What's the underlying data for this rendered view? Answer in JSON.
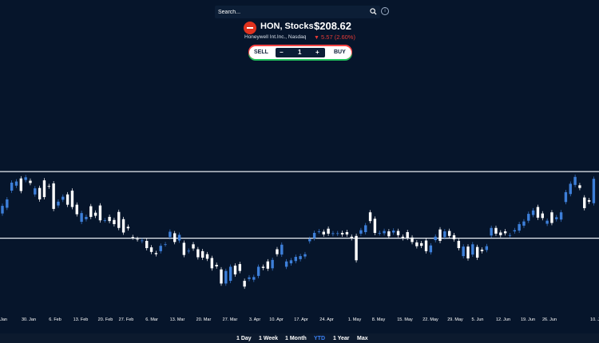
{
  "search": {
    "placeholder": "Search..."
  },
  "header": {
    "symbol": "HON, Stocks",
    "company": "Honeywell Int.Inc., Nasdaq",
    "price": "$208.62",
    "change": "5.57 (2.60%)",
    "change_arrow": "▼",
    "down_color": "#e53935"
  },
  "trade": {
    "sell_label": "SELL",
    "minus_label": "−",
    "quantity": "1",
    "plus_label": "+",
    "buy_label": "BUY"
  },
  "time_ranges": [
    "1 Day",
    "1 Week",
    "1 Month",
    "YTD",
    "1 Year",
    "Max"
  ],
  "selected_range": "YTD",
  "colors": {
    "up": "#3d7fd9",
    "down": "#ffffff",
    "accent": "#3b82f6",
    "background": "#06152b"
  },
  "chart_data": {
    "type": "candlestick",
    "x_labels": [
      ". Jan",
      "30. Jan",
      "6. Feb",
      "13. Feb",
      "20. Feb",
      "27. Feb",
      "6. Mar",
      "13. Mar",
      "20. Mar",
      "27. Mar",
      "3. Apr",
      "10. Apr",
      "17. Apr",
      "24. Apr",
      "1. May",
      "8. May",
      "15. May",
      "22. May",
      "29. May",
      "5. Jun",
      "12. Jun",
      "19. Jun",
      "26. Jun",
      "10. J"
    ],
    "horizontal_lines": [
      226.5,
      209.0
    ],
    "ylim": [
      193,
      237
    ],
    "candles": [
      {
        "o": 215.5,
        "c": 217.5
      },
      {
        "o": 217.0,
        "c": 219.2
      },
      {
        "o": 221.5,
        "c": 223.6
      },
      {
        "o": 222.8,
        "c": 223.9
      },
      {
        "o": 224.7,
        "c": 221.4
      },
      {
        "o": 224.3,
        "c": 225.0
      },
      {
        "o": 224.1,
        "c": 223.5
      },
      {
        "o": 220.5,
        "c": 222.1
      },
      {
        "o": 222.2,
        "c": 219.2
      },
      {
        "o": 224.2,
        "c": 219.8
      },
      {
        "o": 222.7,
        "c": 222.6
      },
      {
        "o": 223.4,
        "c": 216.7
      },
      {
        "o": 217.6,
        "c": 218.6
      },
      {
        "o": 219.1,
        "c": 219.9
      },
      {
        "o": 220.5,
        "c": 217.8
      },
      {
        "o": 221.5,
        "c": 217.2
      },
      {
        "o": 217.8,
        "c": 215.3
      },
      {
        "o": 213.3,
        "c": 215.6
      },
      {
        "o": 214.0,
        "c": 214.6
      },
      {
        "o": 217.4,
        "c": 214.6
      },
      {
        "o": 215.7,
        "c": 214.9
      },
      {
        "o": 217.6,
        "c": 213.7
      },
      {
        "o": 213.7,
        "c": 213.7
      },
      {
        "o": 214.6,
        "c": 213.5
      },
      {
        "o": 213.8,
        "c": 212.7
      },
      {
        "o": 215.9,
        "c": 211.7
      },
      {
        "o": 214.0,
        "c": 210.5
      },
      {
        "o": 212.0,
        "c": 211.6
      },
      {
        "o": 209.3,
        "c": 209.2
      },
      {
        "o": 208.8,
        "c": 208.7
      },
      {
        "o": 208.3,
        "c": 208.4
      },
      {
        "o": 208.3,
        "c": 206.4
      },
      {
        "o": 206.6,
        "c": 205.4
      },
      {
        "o": 205.1,
        "c": 204.8
      },
      {
        "o": 205.6,
        "c": 207.0
      },
      {
        "o": 207.4,
        "c": 207.4
      },
      {
        "o": 209.3,
        "c": 210.7
      },
      {
        "o": 210.3,
        "c": 208.0
      },
      {
        "o": 208.4,
        "c": 209.9
      },
      {
        "o": 207.8,
        "c": 204.6
      },
      {
        "o": 205.6,
        "c": 205.7
      },
      {
        "o": 207.4,
        "c": 206.3
      },
      {
        "o": 206.1,
        "c": 204.0
      },
      {
        "o": 205.6,
        "c": 203.9
      },
      {
        "o": 204.8,
        "c": 203.6
      },
      {
        "o": 203.8,
        "c": 201.1
      },
      {
        "o": 202.0,
        "c": 201.6
      },
      {
        "o": 200.8,
        "c": 197.1
      },
      {
        "o": 197.1,
        "c": 200.4
      },
      {
        "o": 197.8,
        "c": 201.5
      },
      {
        "o": 201.8,
        "c": 199.5
      },
      {
        "o": 202.2,
        "c": 200.4
      },
      {
        "o": 197.8,
        "c": 196.3
      },
      {
        "o": 198.3,
        "c": 198.7
      },
      {
        "o": 198.1,
        "c": 198.8
      },
      {
        "o": 199.1,
        "c": 201.5
      },
      {
        "o": 201.5,
        "c": 201.2
      },
      {
        "o": 202.9,
        "c": 201.0
      },
      {
        "o": 201.1,
        "c": 203.3
      },
      {
        "o": 206.1,
        "c": 204.8
      },
      {
        "o": 204.7,
        "c": 207.3
      },
      {
        "o": 201.5,
        "c": 202.9
      },
      {
        "o": 202.4,
        "c": 203.2
      },
      {
        "o": 203.0,
        "c": 204.1
      },
      {
        "o": 203.5,
        "c": 204.3
      },
      {
        "o": 204.2,
        "c": 204.8
      },
      {
        "o": 208.2,
        "c": 208.8
      },
      {
        "o": 209.0,
        "c": 210.4
      },
      {
        "o": 210.8,
        "c": 210.8
      },
      {
        "o": 210.7,
        "c": 210.0
      },
      {
        "o": 211.5,
        "c": 210.2
      },
      {
        "o": 210.1,
        "c": 210.3
      },
      {
        "o": 210.2,
        "c": 210.3
      },
      {
        "o": 210.4,
        "c": 210.0
      },
      {
        "o": 210.6,
        "c": 210.0
      },
      {
        "o": 209.4,
        "c": 209.0
      },
      {
        "o": 209.6,
        "c": 203.2
      },
      {
        "o": 210.2,
        "c": 211.1
      },
      {
        "o": 210.6,
        "c": 212.4
      },
      {
        "o": 215.8,
        "c": 213.5
      },
      {
        "o": 214.1,
        "c": 210.4
      },
      {
        "o": 210.3,
        "c": 210.4
      },
      {
        "o": 210.3,
        "c": 210.9
      },
      {
        "o": 210.8,
        "c": 209.5
      },
      {
        "o": 210.5,
        "c": 211.0
      },
      {
        "o": 210.9,
        "c": 209.8
      },
      {
        "o": 209.4,
        "c": 209.0
      },
      {
        "o": 210.6,
        "c": 209.1
      },
      {
        "o": 209.2,
        "c": 208.0
      },
      {
        "o": 207.9,
        "c": 206.9
      },
      {
        "o": 207.7,
        "c": 207.0
      },
      {
        "o": 208.4,
        "c": 205.6
      },
      {
        "o": 205.3,
        "c": 207.1
      },
      {
        "o": 208.5,
        "c": 209.4
      },
      {
        "o": 211.3,
        "c": 208.3
      },
      {
        "o": 209.3,
        "c": 210.8
      },
      {
        "o": 210.9,
        "c": 209.6
      },
      {
        "o": 209.8,
        "c": 208.7
      },
      {
        "o": 208.3,
        "c": 206.4
      },
      {
        "o": 204.3,
        "c": 206.8
      },
      {
        "o": 206.8,
        "c": 203.7
      },
      {
        "o": 204.7,
        "c": 207.4
      },
      {
        "o": 206.7,
        "c": 203.9
      },
      {
        "o": 206.0,
        "c": 205.6
      },
      {
        "o": 205.9,
        "c": 206.9
      },
      {
        "o": 209.7,
        "c": 211.7
      },
      {
        "o": 211.7,
        "c": 210.2
      },
      {
        "o": 210.5,
        "c": 209.8
      },
      {
        "o": 210.8,
        "c": 210.3
      },
      {
        "o": 209.8,
        "c": 209.8
      },
      {
        "o": 210.8,
        "c": 211.1
      },
      {
        "o": 211.0,
        "c": 212.7
      },
      {
        "o": 212.3,
        "c": 213.4
      },
      {
        "o": 213.6,
        "c": 215.4
      },
      {
        "o": 215.1,
        "c": 216.3
      },
      {
        "o": 217.2,
        "c": 214.4
      },
      {
        "o": 215.5,
        "c": 214.3
      },
      {
        "o": 212.8,
        "c": 213.6
      },
      {
        "o": 215.8,
        "c": 213.0
      },
      {
        "o": 214.0,
        "c": 214.5
      },
      {
        "o": 213.9,
        "c": 215.8
      },
      {
        "o": 218.5,
        "c": 221.1
      },
      {
        "o": 220.6,
        "c": 223.3
      },
      {
        "o": 223.0,
        "c": 225.1
      },
      {
        "o": 222.9,
        "c": 222.2
      },
      {
        "o": 219.7,
        "c": 216.9
      },
      {
        "o": 219.0,
        "c": 218.6
      },
      {
        "o": 218.2,
        "c": 224.6
      }
    ]
  }
}
